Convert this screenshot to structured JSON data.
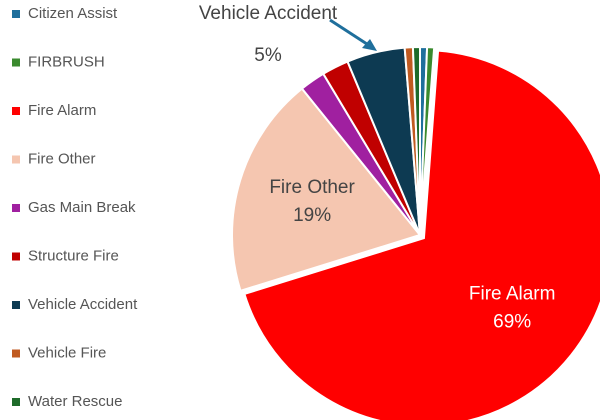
{
  "chart_data": {
    "type": "pie",
    "categories": [
      "Citizen Assist",
      "FIRBRUSH",
      "Fire Alarm",
      "Fire Other",
      "Gas Main Break",
      "Structure Fire",
      "Vehicle Accident",
      "Vehicle Fire",
      "Water Rescue"
    ],
    "values": [
      0.6,
      0.6,
      69,
      19,
      2.2,
      2.3,
      5,
      0.7,
      0.6
    ],
    "value_labels": [
      null,
      null,
      "69%",
      "19%",
      null,
      null,
      "5%",
      null,
      null
    ],
    "colors": [
      "#1f6f9c",
      "#3a8a2e",
      "#ff0000",
      "#f5c6b0",
      "#a020a0",
      "#c00000",
      "#0d3a52",
      "#c05a20",
      "#1e6b2a"
    ],
    "legend": "left"
  }
}
